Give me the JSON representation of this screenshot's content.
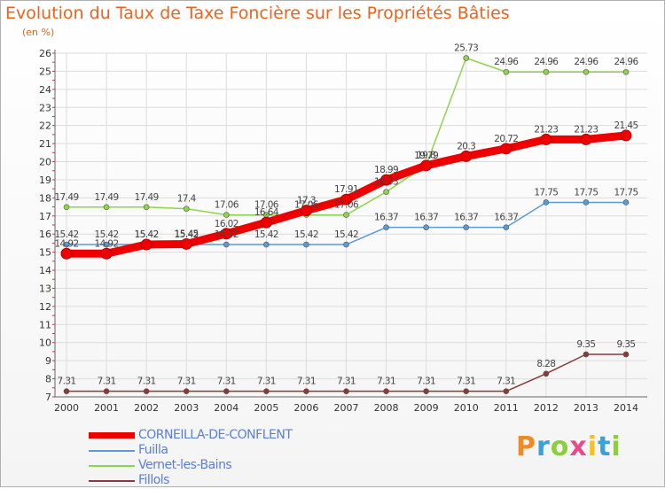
{
  "chart_data": {
    "type": "line",
    "title": "Evolution du Taux de Taxe Foncière sur les Propriétés Bâties",
    "ylabel": "(en %)",
    "xlabel": "",
    "categories": [
      "2000",
      "2001",
      "2002",
      "2003",
      "2004",
      "2005",
      "2006",
      "2007",
      "2008",
      "2009",
      "2010",
      "2011",
      "2012",
      "2013",
      "2014"
    ],
    "y_ticks": [
      "7",
      "8",
      "9",
      "10",
      "11",
      "12",
      "13",
      "14",
      "15",
      "16",
      "17",
      "18",
      "19",
      "20",
      "21",
      "22",
      "23",
      "24",
      "25",
      "26"
    ],
    "ylim": [
      7,
      26
    ],
    "grid": true,
    "series": [
      {
        "name": "CORNEILLA-DE-CONFLENT",
        "color": "#ee0000",
        "values": [
          14.92,
          14.92,
          15.42,
          15.45,
          16.02,
          16.64,
          17.3,
          17.91,
          18.99,
          19.79,
          20.3,
          20.72,
          21.23,
          21.23,
          21.45
        ],
        "labels": [
          "14.92",
          "14.92",
          "15.42",
          "15.45",
          "16.02",
          "16.64",
          "17.3",
          "17.91",
          "18.99",
          "19.79",
          "20.3",
          "20.72",
          "21.23",
          "21.23",
          "21.45"
        ]
      },
      {
        "name": "Fuilla",
        "color": "#5b9bd5",
        "values": [
          15.42,
          15.42,
          15.42,
          15.42,
          15.42,
          15.42,
          15.42,
          15.42,
          16.37,
          16.37,
          16.37,
          16.37,
          17.75,
          17.75,
          17.75
        ],
        "labels": [
          "15.42",
          "15.42",
          "15.42",
          "15.42",
          "15.42",
          "15.42",
          "15.42",
          "15.42",
          "16.37",
          "16.37",
          "16.37",
          "16.37",
          "17.75",
          "17.75",
          "17.75"
        ]
      },
      {
        "name": "Vernet-les-Bains",
        "color": "#8fd44a",
        "values": [
          17.49,
          17.49,
          17.49,
          17.4,
          17.06,
          17.06,
          17.06,
          17.06,
          18.33,
          19.8,
          25.73,
          24.96,
          24.96,
          24.96,
          24.96
        ],
        "labels": [
          "17.49",
          "17.49",
          "17.49",
          "17.4",
          "17.06",
          "17.06",
          "17.06",
          "17.06",
          "18.33",
          "19.8",
          "25.73",
          "24.96",
          "24.96",
          "24.96",
          "24.96"
        ]
      },
      {
        "name": "Fillols",
        "color": "#8b3a3a",
        "values": [
          7.31,
          7.31,
          7.31,
          7.31,
          7.31,
          7.31,
          7.31,
          7.31,
          7.31,
          7.31,
          7.31,
          7.31,
          8.28,
          9.35,
          9.35
        ],
        "labels": [
          "7.31",
          "7.31",
          "7.31",
          "7.31",
          "7.31",
          "7.31",
          "7.31",
          "7.31",
          "7.31",
          "7.31",
          "7.31",
          "7.31",
          "8.28",
          "9.35",
          "9.35"
        ]
      }
    ]
  },
  "brand": {
    "letters": [
      "P",
      "r",
      "o",
      "x",
      "i",
      "t",
      "i"
    ],
    "colors": [
      "#f08a24",
      "#3aa0d8",
      "#8ccf3b",
      "#e84b8a",
      "#f5c21b",
      "#3aa0d8",
      "#8ccf3b"
    ]
  }
}
